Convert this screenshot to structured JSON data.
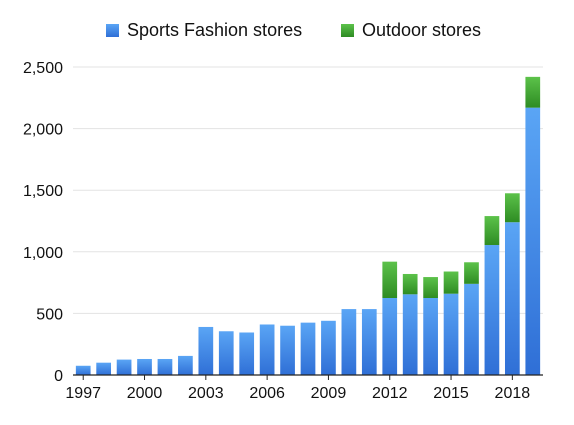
{
  "chart_data": {
    "type": "bar",
    "stacked": true,
    "title": "",
    "xlabel": "",
    "ylabel": "",
    "categories": [
      "1997",
      "1998",
      "1999",
      "2000",
      "2001",
      "2002",
      "2003",
      "2004",
      "2005",
      "2006",
      "2007",
      "2008",
      "2009",
      "2010",
      "2011",
      "2012",
      "2013",
      "2014",
      "2015",
      "2016",
      "2017",
      "2018",
      "2019"
    ],
    "x_tick_labels": [
      "1997",
      "2000",
      "2003",
      "2006",
      "2009",
      "2012",
      "2015",
      "2018"
    ],
    "y_ticks": [
      0,
      500,
      1000,
      1500,
      2000,
      2500
    ],
    "y_tick_labels": [
      "0",
      "500",
      "1,000",
      "1,500",
      "2,000",
      "2,500"
    ],
    "ylim": [
      0,
      2500
    ],
    "grid": true,
    "legend_position": "top-center",
    "series": [
      {
        "name": "Sports Fashion stores",
        "color": "#3a7fde",
        "values": [
          75,
          100,
          125,
          130,
          130,
          155,
          390,
          355,
          345,
          410,
          400,
          425,
          440,
          535,
          535,
          625,
          655,
          625,
          660,
          740,
          1055,
          1240,
          2170
        ]
      },
      {
        "name": "Outdoor stores",
        "color": "#3a9e2d",
        "values": [
          0,
          0,
          0,
          0,
          0,
          0,
          0,
          0,
          0,
          0,
          0,
          0,
          0,
          0,
          0,
          295,
          165,
          170,
          180,
          175,
          235,
          235,
          250
        ]
      }
    ]
  }
}
